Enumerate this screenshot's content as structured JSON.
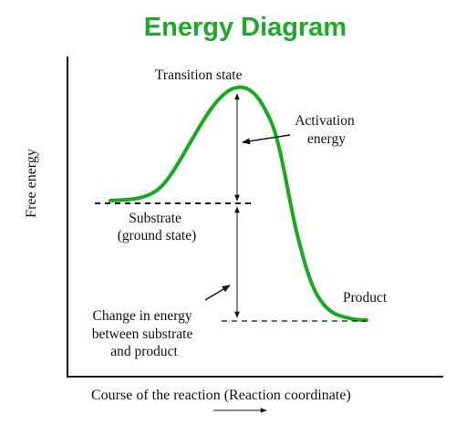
{
  "title": "Energy Diagram",
  "title_color": "#1fa82a",
  "curve_color": "#16a81e",
  "ink_color": "#111111",
  "y_axis_label": "Free energy",
  "x_axis_label": "Course of the reaction  (Reaction coordinate)",
  "labels": {
    "transition_state": "Transition state",
    "activation_energy_line1": "Activation",
    "activation_energy_line2": "energy",
    "substrate_line1": "Substrate",
    "substrate_line2": "(ground state)",
    "product": "Product",
    "change_line1": "Change in energy",
    "change_line2": "between substrate",
    "change_line3": "and product"
  },
  "icons": {
    "direction_arrow": "right-arrow-icon",
    "activation_pointer": "pointer-arrow-icon",
    "change_pointer": "pointer-arrow-icon"
  }
}
